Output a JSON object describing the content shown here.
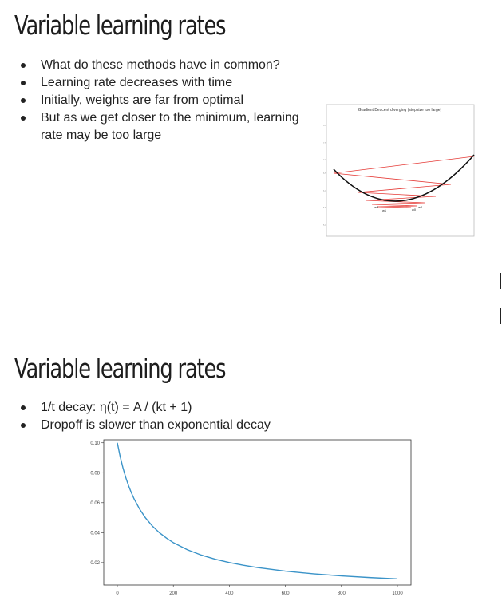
{
  "slide1": {
    "title": "Variable learning rates",
    "bullets": [
      "What do these methods have in common?",
      "Learning rate decreases with time",
      "Initially, weights are far from optimal",
      "But as we get closer to the minimum, learning rate may be too large"
    ],
    "figure": {
      "title": "Gradient Descent diverging (stepsize too large)",
      "labels": [
        "w0",
        "w1",
        "w2",
        "w3"
      ]
    }
  },
  "slide2": {
    "title": "Variable learning rates",
    "bullets": [
      "1/t decay: η(t) = A / (kt + 1)",
      "Dropoff is slower than exponential decay"
    ]
  },
  "chart_data": {
    "type": "line",
    "title": "",
    "xlabel": "",
    "ylabel": "",
    "xlim": [
      0,
      1000
    ],
    "ylim": [
      0.005,
      0.102
    ],
    "xticks": [
      0,
      200,
      400,
      600,
      800,
      1000
    ],
    "yticks": [
      0.02,
      0.04,
      0.06,
      0.08,
      0.1
    ],
    "ytick_labels": [
      "0.02",
      "0.04",
      "0.06",
      "0.08",
      "0.10"
    ],
    "series": [
      {
        "color": "#3a93c8",
        "x": [
          0,
          10,
          20,
          30,
          40,
          50,
          60,
          80,
          100,
          125,
          150,
          175,
          200,
          250,
          300,
          350,
          400,
          450,
          500,
          600,
          700,
          800,
          900,
          1000
        ],
        "y": [
          0.1,
          0.0909,
          0.0833,
          0.0769,
          0.0714,
          0.0667,
          0.0625,
          0.0556,
          0.05,
          0.0444,
          0.04,
          0.0364,
          0.0333,
          0.0286,
          0.025,
          0.0222,
          0.02,
          0.0182,
          0.0167,
          0.0143,
          0.0125,
          0.0111,
          0.01,
          0.0091
        ]
      }
    ],
    "grid": false
  }
}
